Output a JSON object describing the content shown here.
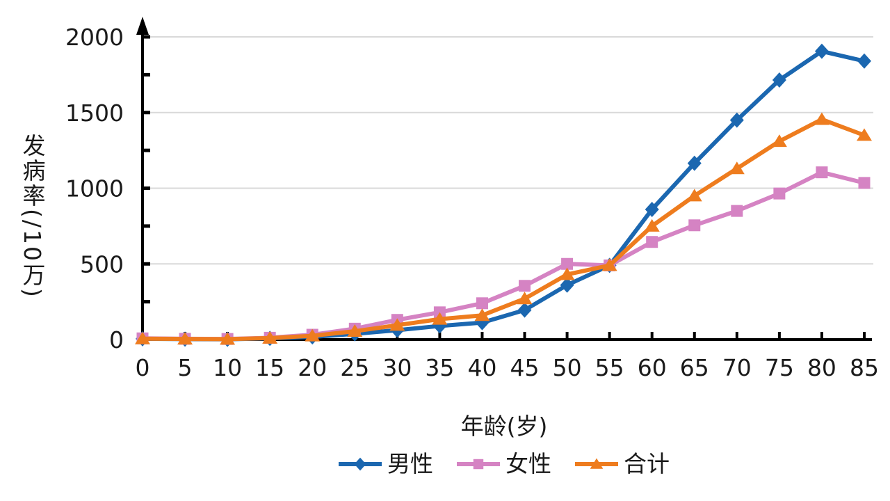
{
  "chart_data": {
    "type": "line",
    "title": "",
    "xlabel": "年龄(岁)",
    "ylabel": "发病率(/10万)",
    "x": [
      0,
      5,
      10,
      15,
      20,
      25,
      30,
      35,
      40,
      45,
      50,
      55,
      60,
      65,
      70,
      75,
      80,
      85
    ],
    "series": [
      {
        "name": "男性",
        "marker": "diamond",
        "color": "#1b67b0",
        "values": [
          5,
          3,
          2,
          8,
          18,
          38,
          62,
          90,
          112,
          195,
          360,
          490,
          860,
          1165,
          1450,
          1715,
          1905,
          1840
        ]
      },
      {
        "name": "女性",
        "marker": "square",
        "color": "#d583c3",
        "values": [
          8,
          5,
          4,
          12,
          32,
          72,
          130,
          180,
          240,
          355,
          500,
          490,
          645,
          755,
          850,
          965,
          1105,
          1035
        ]
      },
      {
        "name": "合计",
        "marker": "triangle",
        "color": "#ee7c1e",
        "values": [
          6,
          4,
          3,
          10,
          25,
          55,
          95,
          135,
          160,
          270,
          430,
          490,
          750,
          950,
          1130,
          1310,
          1455,
          1350
        ]
      }
    ],
    "ylim": [
      0,
      2000
    ],
    "yticks": [
      0,
      500,
      1000,
      1500,
      2000
    ],
    "ytick_minor_step": 250,
    "grid": "horizontal",
    "legend_position": "bottom"
  },
  "colors": {
    "background": "#ffffff",
    "axis": "#000000",
    "gridline": "#d9d9d9",
    "text": "#1a1a1a"
  }
}
